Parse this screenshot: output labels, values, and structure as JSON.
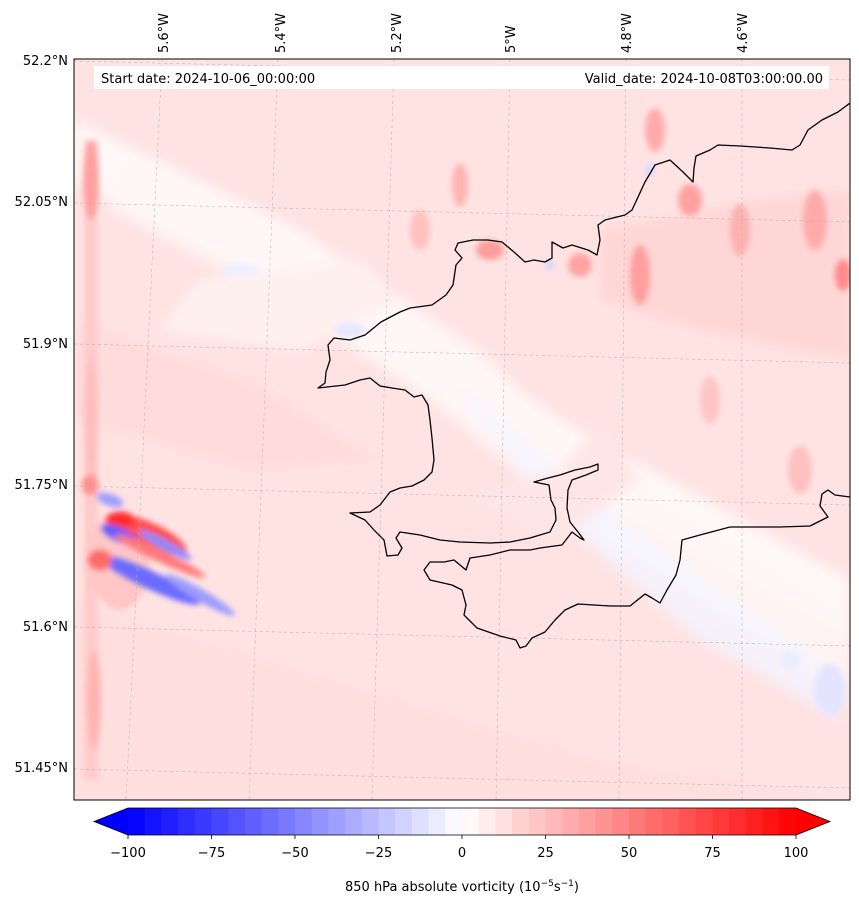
{
  "header": {
    "start_date": "Start date: 2024-10-06_00:00:00",
    "valid_date": "Valid_date: 2024-10-08T03:00:00.00"
  },
  "axes": {
    "lon_labels": [
      "5.6°W",
      "5.4°W",
      "5.2°W",
      "5°W",
      "4.8°W",
      "4.6°W"
    ],
    "lat_labels": [
      "52.2°N",
      "52.05°N",
      "51.9°N",
      "51.75°N",
      "51.6°N",
      "51.45°N"
    ]
  },
  "colorbar": {
    "tick_labels": [
      "−100",
      "−75",
      "−50",
      "−25",
      "0",
      "25",
      "50",
      "75",
      "100"
    ],
    "label_main": "850 hPa absolute vorticity (10",
    "label_exp1": "−5",
    "label_mid": "s",
    "label_exp2": "−1",
    "label_end": ")",
    "min_color": "#0000ff",
    "mid_color": "#ffffff",
    "max_color": "#ff0000"
  },
  "chart_data": {
    "type": "heatmap",
    "variable": "850 hPa absolute vorticity",
    "vmin": -100,
    "vmax": 100,
    "extend": "both",
    "lon_range": [
      -5.7,
      -4.5
    ],
    "lat_range": [
      51.42,
      52.2
    ],
    "grid": true
  }
}
